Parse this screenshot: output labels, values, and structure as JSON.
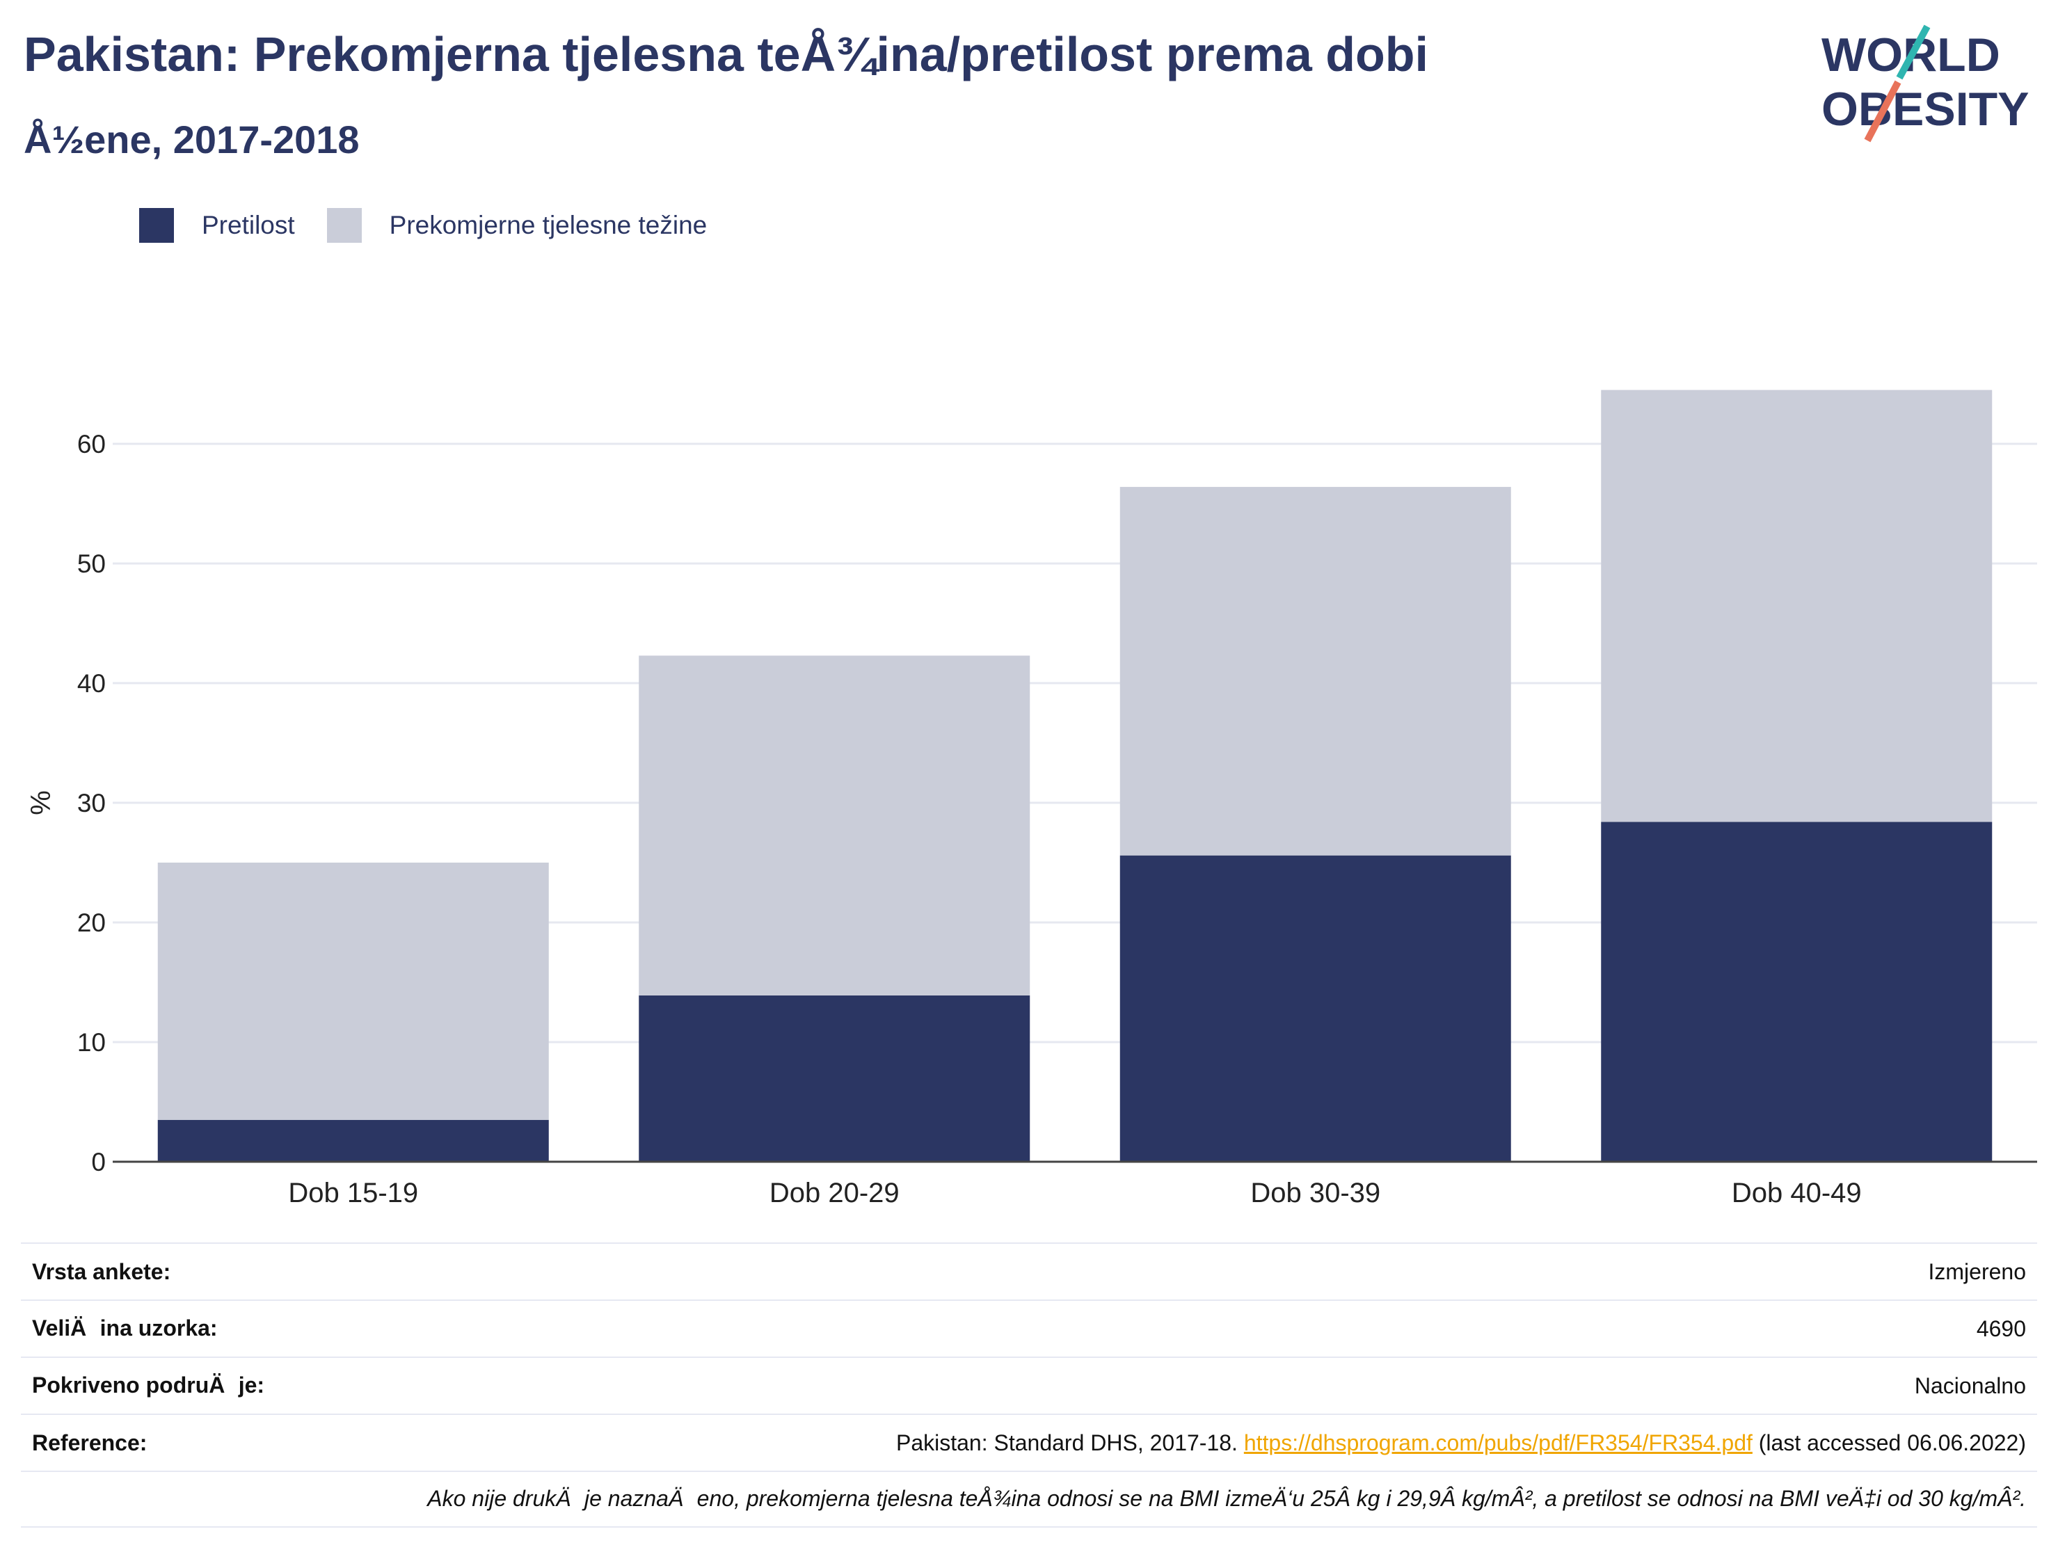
{
  "header": {
    "title": "Pakistan: Prekomjerna tjelesna teÅ¾ina/pretilost prema dobi",
    "subtitle": "Å½ene, 2017-2018"
  },
  "logo": {
    "line1": "WORLD",
    "line2": "OBESITY"
  },
  "legend": {
    "obese_label": "Pretilost",
    "overweight_label": "Prekomjerne tjelesne težine"
  },
  "colors": {
    "obese": "#2b3663",
    "overweight": "#cacdd9",
    "grid": "#e6e8f0",
    "axis": "#444444",
    "logo_teal": "#2fb5b0",
    "logo_coral": "#e8735a"
  },
  "chart_data": {
    "type": "bar",
    "stacked": true,
    "categories": [
      "Dob 15-19",
      "Dob 20-29",
      "Dob 30-39",
      "Dob 40-49"
    ],
    "series": [
      {
        "name": "Pretilost",
        "values": [
          3.5,
          13.9,
          25.6,
          28.4
        ]
      },
      {
        "name": "Prekomjerne tjelesne težine",
        "values": [
          21.5,
          28.4,
          30.8,
          36.1
        ]
      }
    ],
    "totals": [
      25.0,
      42.3,
      56.4,
      64.5
    ],
    "ylabel": "%",
    "yticks": [
      0,
      10,
      20,
      30,
      40,
      50,
      60
    ],
    "ylim": [
      0,
      68
    ],
    "grid": true,
    "legend_position": "top-left"
  },
  "footer": {
    "rows": [
      {
        "label": "Vrsta ankete:",
        "value": "Izmjereno"
      },
      {
        "label": "VeliÄina uzorka:",
        "value": "4690"
      },
      {
        "label": "Pokriveno podruÄje:",
        "value": "Nacionalno"
      }
    ],
    "reference_label": "Reference:",
    "reference_prefix": "Pakistan: Standard DHS, 2017-18. ",
    "reference_link": "https://dhsprogram.com/pubs/pdf/FR354/FR354.pdf",
    "reference_suffix": " (last accessed 06.06.2022)",
    "note": "Ako nije drukÄje naznaÄeno, prekomjerna tjelesna teÅ¾ina odnosi se na BMI izmeÄ‘u 25Â kg i 29,9Â kg/mÂ², a pretilost se odnosi na BMI veÄ‡i od 30 kg/mÂ²."
  }
}
